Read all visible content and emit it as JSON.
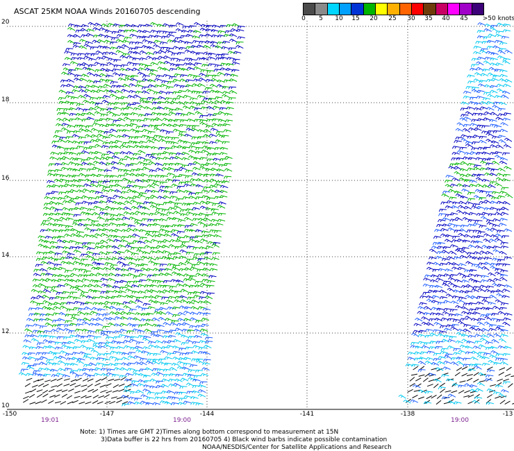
{
  "title": "ASCAT 25KM NOAA Winds 20160705 descending",
  "scale": {
    "colors": [
      "#4b4b4b",
      "#8a8a8a",
      "#00d6ff",
      "#00a0ff",
      "#0033d6",
      "#00b400",
      "#ffff00",
      "#ffb000",
      "#ff6400",
      "#ff0000",
      "#6e3c0a",
      "#c80064",
      "#ff00ff",
      "#a000c8",
      "#3c0078"
    ],
    "labels": [
      "0",
      "5",
      "10",
      "15",
      "20",
      "25",
      "30",
      "35",
      "40",
      "45",
      ">50 knots"
    ]
  },
  "axes": {
    "y_ticks": [
      "20",
      "18",
      "16",
      "14",
      "12",
      "10"
    ],
    "x_ticks": [
      "-150",
      "-147",
      "-144",
      "-141",
      "-138",
      "-13"
    ],
    "pass_times": [
      "19:01",
      "19:00",
      "19:00"
    ]
  },
  "notes": {
    "line1": "Note: 1) Times are GMT 2)Times along bottom correspond to measurement at 15N",
    "line2": "3)Data buffer is 22 hrs from 20160705 4) Black wind barbs indicate possible contamination",
    "line3": "NOAA/NESDIS/Center for Satellite Applications and Research"
  },
  "colors": {
    "dark_blue": "#0000c0",
    "blue": "#1c5cff",
    "cyan": "#00c8f0",
    "green": "#00b400",
    "black": "#000000"
  }
}
